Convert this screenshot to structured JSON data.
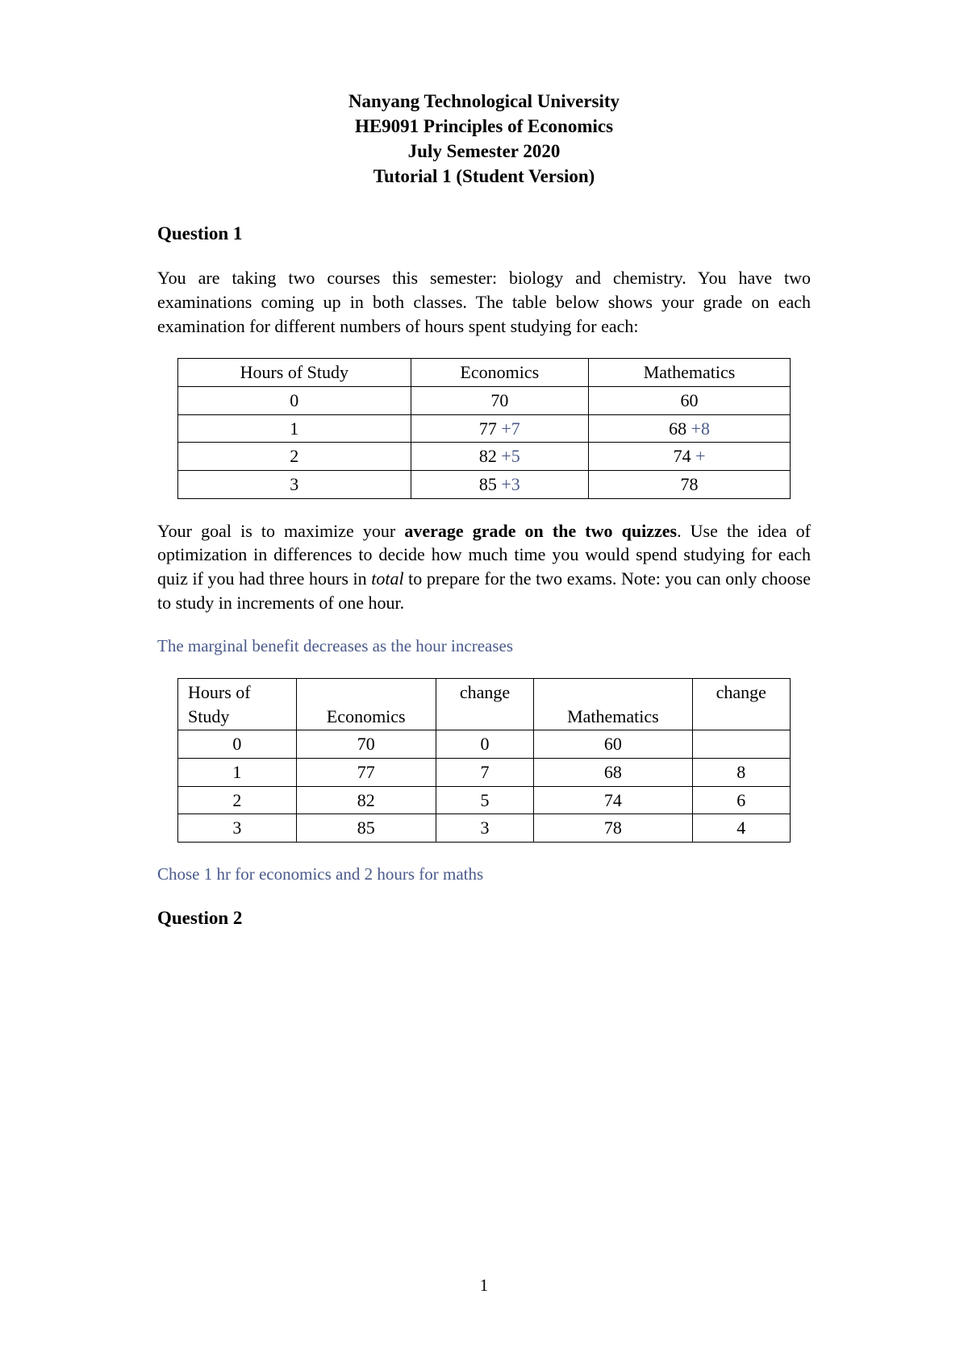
{
  "header": {
    "line1": "Nanyang Technological University",
    "line2": "HE9091 Principles of Economics",
    "line3": "July Semester 2020",
    "line4": "Tutorial 1 (Student Version)"
  },
  "question1": {
    "heading": "Question 1",
    "para1": "You are taking two courses this semester: biology and chemistry. You have two examinations coming up in both classes. The table below shows your grade on each examination for different numbers of hours spent studying for each:",
    "para2_a": "Your goal is to maximize your ",
    "para2_bold": "average grade on the two quizzes",
    "para2_b": ". Use the idea of optimization in differences to decide how much time you would spend studying for each quiz if you had three hours in ",
    "para2_italic": "total",
    "para2_c": " to prepare for the two exams. Note: you can only choose to study in increments of one hour.",
    "annotation1": "The marginal benefit decreases as the hour increases",
    "annotation2": "Chose 1 hr for economics and 2 hours for maths"
  },
  "table1": {
    "headers": [
      "Hours of Study",
      "Economics",
      "Mathematics"
    ],
    "rows": [
      {
        "hours": "0",
        "econ": "70",
        "econ_change": "",
        "math": "60",
        "math_change": ""
      },
      {
        "hours": "1",
        "econ": "77 ",
        "econ_change": "+7",
        "math": "68 ",
        "math_change": "+8"
      },
      {
        "hours": "2",
        "econ": "82 ",
        "econ_change": "+5",
        "math": "74 ",
        "math_change": "+"
      },
      {
        "hours": "3",
        "econ": "85 ",
        "econ_change": "+3",
        "math": "78",
        "math_change": ""
      }
    ]
  },
  "table2": {
    "headers": {
      "hours1": "Hours of",
      "hours2": "Study",
      "econ": "Economics",
      "change1": "change",
      "math": "Mathematics",
      "change2": "change"
    },
    "rows": [
      {
        "hours": "0",
        "econ": "70",
        "change1": "0",
        "math": "60",
        "change2": ""
      },
      {
        "hours": "1",
        "econ": "77",
        "change1": "7",
        "math": "68",
        "change2": "8"
      },
      {
        "hours": "2",
        "econ": "82",
        "change1": "5",
        "math": "74",
        "change2": "6"
      },
      {
        "hours": "3",
        "econ": "85",
        "change1": "3",
        "math": "78",
        "change2": "4"
      }
    ]
  },
  "question2": {
    "heading": "Question 2"
  },
  "page_number": "1",
  "colors": {
    "annotation_color": "#4a5a8a",
    "text_color": "#000000",
    "background": "#ffffff"
  }
}
